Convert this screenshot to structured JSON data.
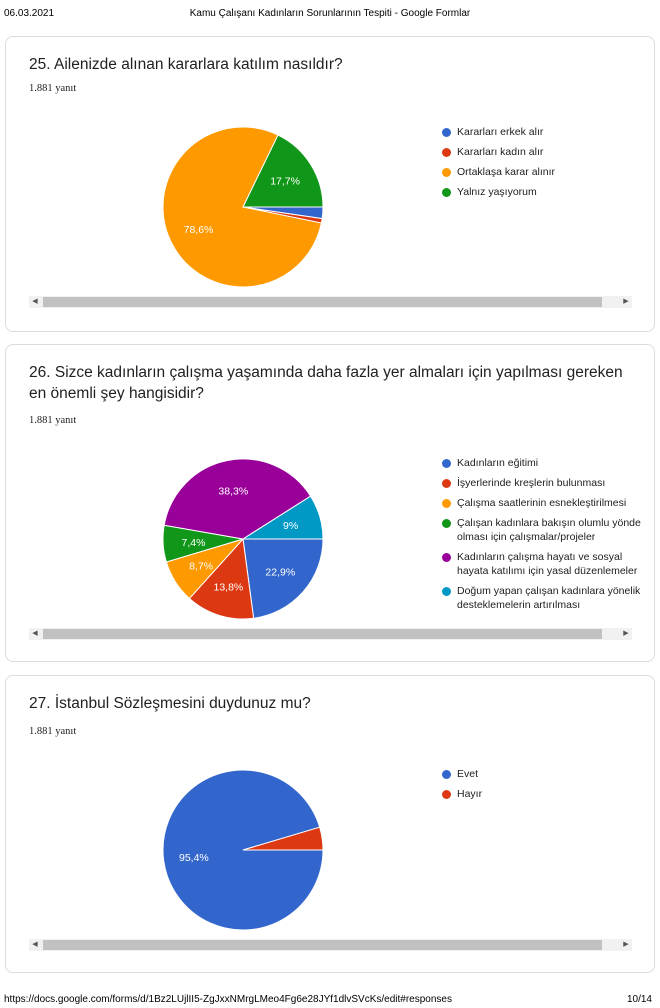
{
  "header": {
    "date": "06.03.2021",
    "title": "Kamu Çalışanı Kadınların Sorunlarının Tespiti - Google Formlar"
  },
  "footer": {
    "url": "https://docs.google.com/forms/d/1Bz2LUjlII5-ZgJxxNMrgLMeo4Fg6e28JYf1dlvSVcKs/edit#responses",
    "page": "10/14"
  },
  "questions": [
    {
      "title": "25. Ailenizde alınan kararlara katılım nasıldır?",
      "responses": "1.881 yanıt"
    },
    {
      "title": "26. Sizce kadınların çalışma yaşamında daha fazla yer almaları için yapılması gereken en önemli şey hangisidir?",
      "responses": "1.881 yanıt"
    },
    {
      "title": "27. İstanbul Sözleşmesini duydunuz mu?",
      "responses": "1.881 yanıt"
    }
  ],
  "chart_data": [
    {
      "type": "pie",
      "categories": [
        "Kararları erkek alır",
        "Kararları kadın alır",
        "Ortaklaşa karar alınır",
        "Yalnız yaşıyorum"
      ],
      "values": [
        2.3,
        0.9,
        78.6,
        17.7
      ],
      "labels": [
        "",
        "",
        "78,6%",
        "17,7%"
      ],
      "colors": [
        "#3366cc",
        "#dc3912",
        "#ff9900",
        "#109618"
      ],
      "legend": "right"
    },
    {
      "type": "pie",
      "categories": [
        [
          "Kadınların eğitimi"
        ],
        [
          "İşyerlerinde kreşlerin bulunması"
        ],
        [
          "Çalışma saatlerinin esnekleştirilmesi"
        ],
        [
          "Çalışan kadınlara bakışın olumlu yönde",
          "olması için çalışmalar/projeler"
        ],
        [
          "Kadınların çalışma hayatı ve sosyal",
          "hayata katılımı için yasal düzenlemeler"
        ],
        [
          "Doğum yapan çalışan kadınlara yönelik",
          "desteklemelerin artırılması"
        ]
      ],
      "values": [
        22.9,
        13.8,
        8.7,
        7.4,
        38.3,
        9.0
      ],
      "labels": [
        "22,9%",
        "13,8%",
        "8,7%",
        "7,4%",
        "38,3%",
        "9%"
      ],
      "colors": [
        "#3366cc",
        "#dc3912",
        "#ff9900",
        "#109618",
        "#990099",
        "#0099c6"
      ],
      "legend": "right"
    },
    {
      "type": "pie",
      "categories": [
        "Evet",
        "Hayır"
      ],
      "values": [
        95.4,
        4.6
      ],
      "labels": [
        "95,4%",
        ""
      ],
      "colors": [
        "#3366cc",
        "#dc3912"
      ],
      "legend": "right"
    }
  ]
}
